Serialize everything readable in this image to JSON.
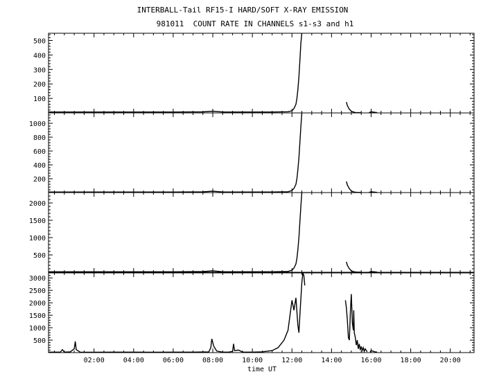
{
  "title_line1": "INTERBALL-Tail RF15-I HARD/SOFT X-RAY EMISSION",
  "title_line2": "981011  COUNT RATE IN CHANNELS s1-s3 and h1",
  "chart_data": {
    "type": "line",
    "xlabel": "time UT",
    "x_unit": "hours UT",
    "xlim": [
      -0.3,
      21.2
    ],
    "x_ticks": [
      2,
      4,
      6,
      8,
      10,
      12,
      14,
      16,
      18,
      20
    ],
    "x_tick_labels": [
      "02:00",
      "04:00",
      "06:00",
      "08:00",
      "10:00",
      "12:00",
      "14:00",
      "16:00",
      "18:00",
      "20:00"
    ],
    "grid": false,
    "panels": [
      {
        "name": "s1",
        "ylim": [
          0,
          550
        ],
        "y_ticks": [
          100,
          200,
          300,
          400,
          500
        ],
        "y_tick_labels": [
          "100",
          "200",
          "300",
          "400",
          "500"
        ],
        "series": [
          {
            "x": [
              -0.3,
              2,
              4,
              6,
              7.5,
              8.0,
              8.5,
              9.5,
              10,
              11,
              11.8,
              12.0,
              12.1,
              12.2,
              12.25,
              12.3,
              12.35,
              12.4,
              12.45,
              12.5
            ],
            "y": [
              6,
              6,
              6,
              6,
              7,
              12,
              6,
              6,
              6,
              6,
              8,
              15,
              30,
              60,
              100,
              160,
              250,
              360,
              480,
              550
            ]
          },
          {
            "x": [
              14.75,
              14.8,
              14.9,
              15.0,
              15.1,
              15.2,
              15.3,
              15.5
            ],
            "y": [
              75,
              50,
              25,
              12,
              6,
              3,
              2,
              2
            ]
          },
          {
            "x": [
              15.9,
              16.0,
              16.2,
              16.3
            ],
            "y": [
              2,
              8,
              4,
              2
            ]
          }
        ]
      },
      {
        "name": "s2",
        "ylim": [
          0,
          1150
        ],
        "y_ticks": [
          200,
          400,
          600,
          800,
          1000
        ],
        "y_tick_labels": [
          "200",
          "400",
          "600",
          "800",
          "1000"
        ],
        "series": [
          {
            "x": [
              -0.3,
              2,
              4,
              6,
              7.5,
              8.0,
              8.5,
              9.5,
              10,
              11,
              11.8,
              12.0,
              12.1,
              12.2,
              12.25,
              12.3,
              12.35,
              12.4,
              12.45,
              12.5
            ],
            "y": [
              8,
              8,
              8,
              8,
              10,
              20,
              8,
              8,
              8,
              8,
              12,
              30,
              60,
              120,
              200,
              330,
              500,
              720,
              950,
              1150
            ]
          },
          {
            "x": [
              14.75,
              14.8,
              14.9,
              15.0,
              15.1,
              15.2,
              15.3,
              15.5
            ],
            "y": [
              160,
              110,
              55,
              25,
              10,
              5,
              3,
              3
            ]
          },
          {
            "x": [
              15.9,
              16.0,
              16.2,
              16.3
            ],
            "y": [
              3,
              12,
              6,
              3
            ]
          }
        ]
      },
      {
        "name": "s3",
        "ylim": [
          0,
          2300
        ],
        "y_ticks": [
          500,
          1000,
          1500,
          2000
        ],
        "y_tick_labels": [
          "500",
          "1000",
          "1500",
          "2000"
        ],
        "series": [
          {
            "x": [
              -0.3,
              2,
              4,
              6,
              7.5,
              8.0,
              8.5,
              9.5,
              10,
              11,
              11.8,
              12.0,
              12.1,
              12.2,
              12.25,
              12.3,
              12.35,
              12.4,
              12.45,
              12.5
            ],
            "y": [
              15,
              15,
              15,
              15,
              20,
              40,
              15,
              15,
              15,
              15,
              25,
              60,
              120,
              240,
              400,
              650,
              1000,
              1450,
              1900,
              2300
            ]
          },
          {
            "x": [
              14.75,
              14.8,
              14.9,
              15.0,
              15.1,
              15.2,
              15.3,
              15.5
            ],
            "y": [
              300,
              200,
              100,
              45,
              18,
              8,
              5,
              5
            ]
          },
          {
            "x": [
              15.9,
              16.0,
              16.2,
              16.3
            ],
            "y": [
              5,
              20,
              10,
              5
            ]
          }
        ]
      },
      {
        "name": "h1",
        "ylim": [
          0,
          3200
        ],
        "y_ticks": [
          500,
          1000,
          1500,
          2000,
          2500,
          3000
        ],
        "y_tick_labels": [
          "500",
          "1000",
          "1500",
          "2000",
          "2500",
          "3000"
        ],
        "series": [
          {
            "x": [
              -0.3,
              0.3,
              0.4,
              0.5,
              0.8,
              1.0,
              1.05,
              1.1,
              1.3,
              2,
              3,
              4,
              5,
              6,
              7,
              7.8,
              7.9,
              7.95,
              8.05,
              8.2,
              8.5,
              8.8,
              9.0,
              9.05,
              9.1,
              9.3,
              9.4,
              9.5,
              9.8,
              10,
              10.5,
              11,
              11.3,
              11.6,
              11.8,
              11.9,
              12.0,
              12.1,
              12.2,
              12.3,
              12.35,
              12.4,
              12.5,
              12.55,
              12.6,
              12.65
            ],
            "y": [
              20,
              20,
              120,
              20,
              30,
              150,
              450,
              120,
              20,
              15,
              20,
              20,
              15,
              20,
              20,
              30,
              200,
              550,
              250,
              60,
              20,
              20,
              50,
              350,
              80,
              100,
              60,
              20,
              20,
              20,
              30,
              80,
              200,
              500,
              900,
              1500,
              2100,
              1700,
              2200,
              1100,
              800,
              1500,
              2800,
              3200,
              3100,
              2700
            ]
          },
          {
            "x": [
              14.7,
              14.75,
              14.8,
              14.85,
              14.9,
              14.95,
              15.0,
              15.05,
              15.1,
              15.12,
              15.15,
              15.2,
              15.25,
              15.3,
              15.35,
              15.4,
              15.45,
              15.5,
              15.55,
              15.6,
              15.65,
              15.7,
              15.8
            ],
            "y": [
              2100,
              1800,
              1300,
              600,
              500,
              1600,
              2350,
              1200,
              900,
              1700,
              800,
              600,
              300,
              500,
              150,
              350,
              100,
              250,
              80,
              200,
              50,
              150,
              30
            ]
          },
          {
            "x": [
              15.95,
              16.0,
              16.2,
              16.3
            ],
            "y": [
              20,
              80,
              30,
              20
            ]
          }
        ]
      }
    ]
  }
}
